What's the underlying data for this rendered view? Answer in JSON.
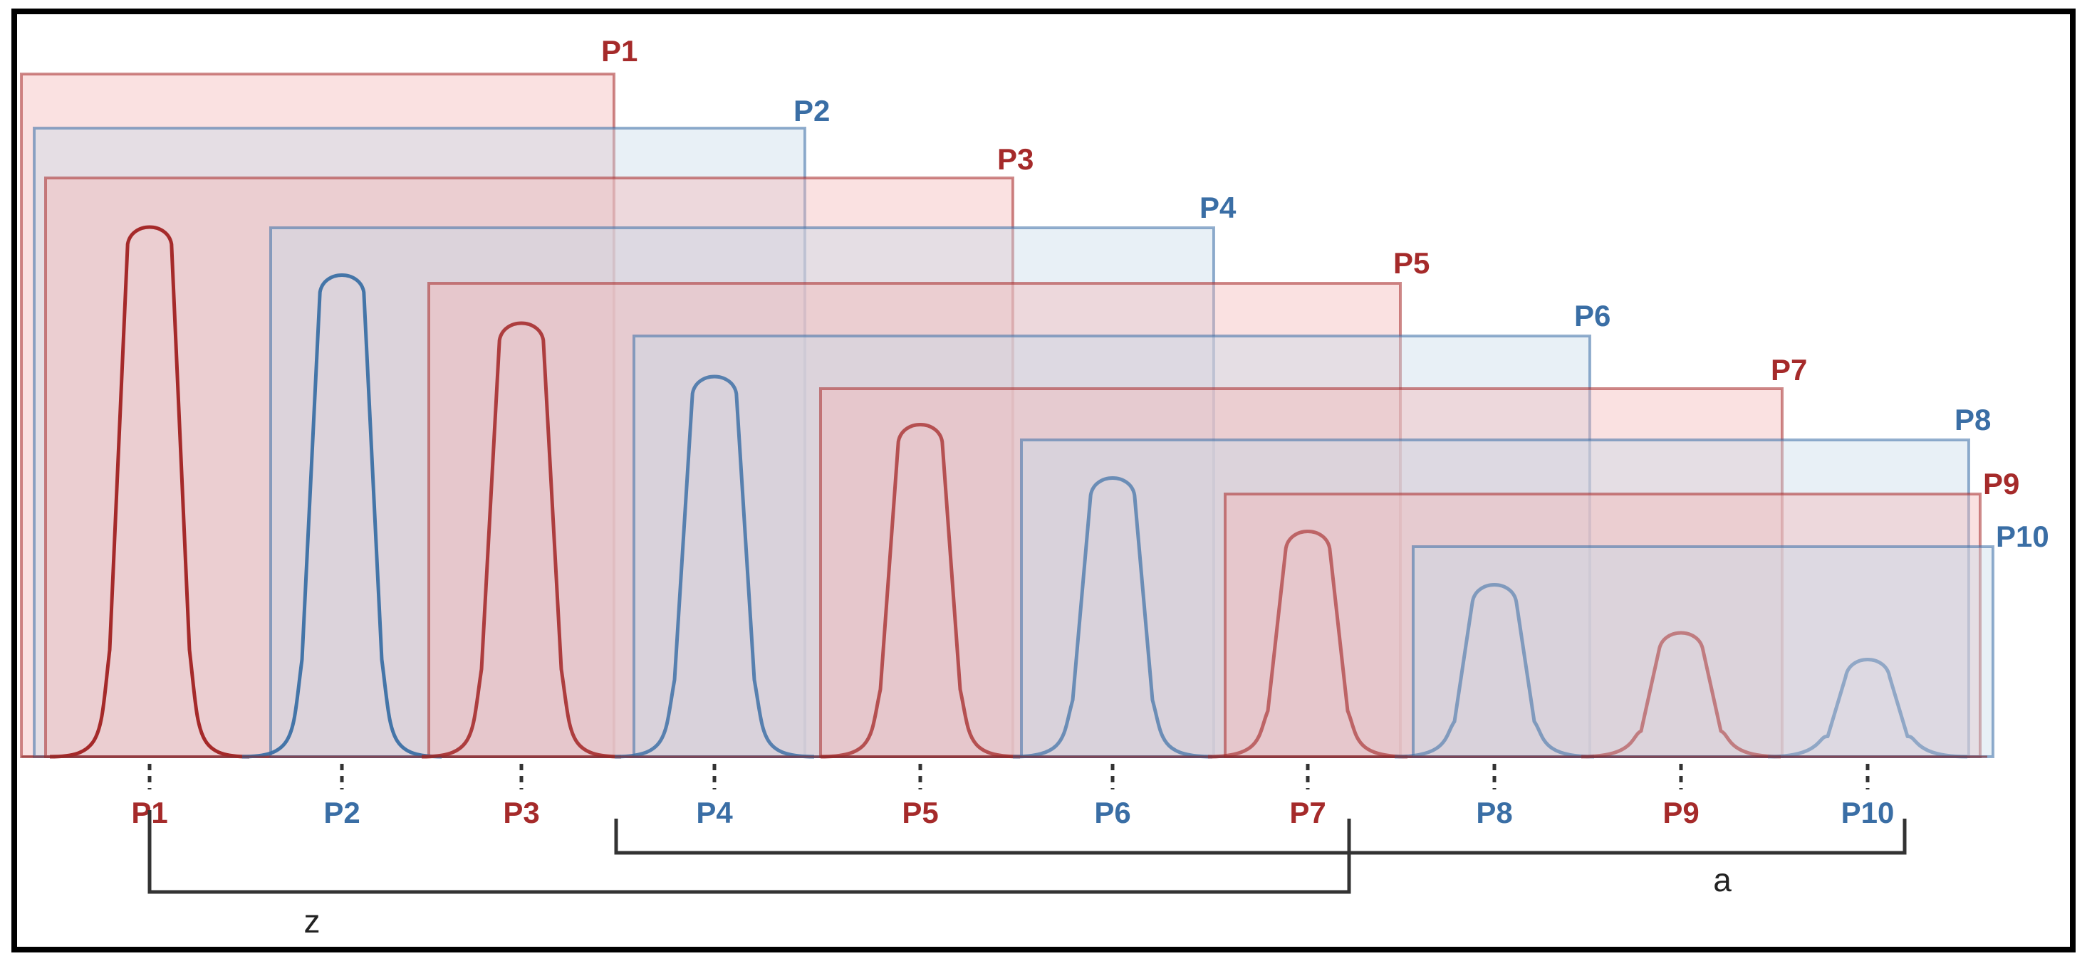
{
  "colors": {
    "red": "#a52a2a",
    "blue": "#3a6ea5",
    "red_fill": "#f2b8b8",
    "blue_fill": "#c9dcea"
  },
  "peaks": [
    {
      "label": "P1",
      "color": "red",
      "box_label": "P1",
      "relative_height": 1.0
    },
    {
      "label": "P2",
      "color": "blue",
      "box_label": "P2",
      "relative_height": 0.91
    },
    {
      "label": "P3",
      "color": "red",
      "box_label": "P3",
      "relative_height": 0.82
    },
    {
      "label": "P4",
      "color": "blue",
      "box_label": "P4",
      "relative_height": 0.72
    },
    {
      "label": "P5",
      "color": "red",
      "box_label": "P5",
      "relative_height": 0.63
    },
    {
      "label": "P6",
      "color": "blue",
      "box_label": "P6",
      "relative_height": 0.53
    },
    {
      "label": "P7",
      "color": "red",
      "box_label": "P7",
      "relative_height": 0.43
    },
    {
      "label": "P8",
      "color": "blue",
      "box_label": "P8",
      "relative_height": 0.33
    },
    {
      "label": "P9",
      "color": "red",
      "box_label": "P9",
      "relative_height": 0.24
    },
    {
      "label": "P10",
      "color": "blue",
      "box_label": "P10",
      "relative_height": 0.19
    }
  ],
  "brackets": {
    "z": {
      "label": "z",
      "from_peak": "P1",
      "to_peak": "P7"
    },
    "a": {
      "label": "a",
      "from_peak": "P4",
      "to_peak": "P10"
    }
  }
}
